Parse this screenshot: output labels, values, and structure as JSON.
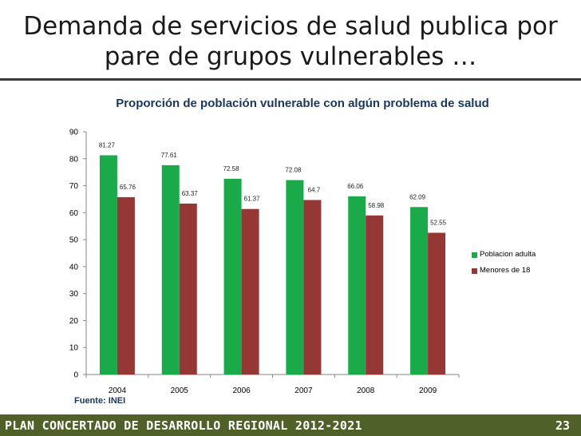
{
  "slide": {
    "title_line1": "Demanda de servicios de salud publica por",
    "title_line2": "pare de grupos vulnerables …",
    "source": "Fuente: INEI",
    "footer_text": "PLAN CONCERTADO DE DESARROLLO REGIONAL 2012-2021",
    "page_number": "23"
  },
  "chart_data": {
    "type": "bar",
    "title": "Proporción de población vulnerable con algún problema de salud",
    "categories": [
      "2004",
      "2005",
      "2006",
      "2007",
      "2008",
      "2009"
    ],
    "series": [
      {
        "name": "Poblacion adulta",
        "color": "#1aaa4a",
        "values": [
          81.27,
          77.61,
          72.58,
          72.08,
          66.06,
          62.09
        ],
        "labels": [
          "81.27",
          "77.61",
          "72.58",
          "72.08",
          "66.06",
          "62.09"
        ]
      },
      {
        "name": "Menores de 18",
        "color": "#953735",
        "values": [
          65.76,
          63.37,
          61.37,
          64.7,
          58.98,
          52.55
        ],
        "labels": [
          "65.76",
          "63.37",
          "61.37",
          "64.7",
          "58.98",
          "52.55"
        ]
      }
    ],
    "ylim": [
      0,
      90
    ],
    "yticks": [
      0,
      10,
      20,
      30,
      40,
      50,
      60,
      70,
      80,
      90
    ],
    "xlabel": "",
    "ylabel": "",
    "grid": false,
    "legend": "right"
  }
}
